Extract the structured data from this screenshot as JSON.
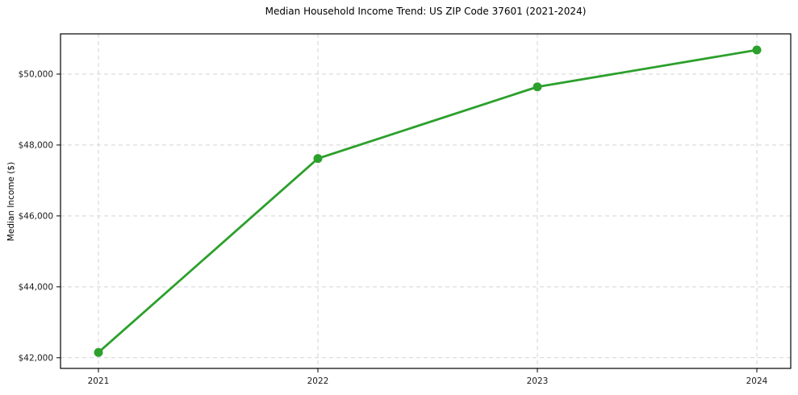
{
  "chart_data": {
    "type": "line",
    "title": "Median Household Income Trend: US ZIP Code 37601 (2021-2024)",
    "xlabel": "",
    "ylabel": "Median Income ($)",
    "x": [
      2021,
      2022,
      2023,
      2024
    ],
    "x_tick_labels": [
      "2021",
      "2022",
      "2023",
      "2024"
    ],
    "series": [
      {
        "name": "Median Household Income",
        "values": [
          42150,
          47620,
          49640,
          50680
        ],
        "color": "#2ca02c",
        "marker": "circle"
      }
    ],
    "ylim": [
      41700,
      51135
    ],
    "yticks": [
      42000,
      44000,
      46000,
      48000,
      50000
    ],
    "ytick_labels": [
      "$42,000",
      "$44,000",
      "$46,000",
      "$48,000",
      "$50,000"
    ],
    "grid": true,
    "grid_style": "dashed",
    "grid_color": "#d3d3d3",
    "spine_color": "#000000",
    "background_color": "#ffffff",
    "legend": false,
    "legend_position": "none"
  }
}
